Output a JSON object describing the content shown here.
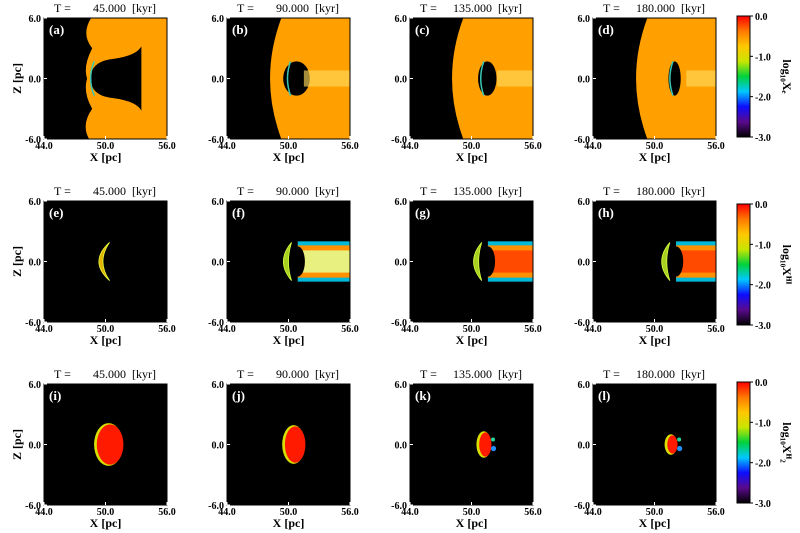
{
  "figure": {
    "background": "#000000",
    "colormap": [
      "#000000",
      "#5a0a8c",
      "#0d0dff",
      "#00c8ff",
      "#00d23c",
      "#c8e600",
      "#ffc800",
      "#ff7800",
      "#ff0000"
    ]
  },
  "chart_data": {
    "type": "heatmap",
    "layout": {
      "rows": 3,
      "cols": 4
    },
    "xlabel": "X [pc]",
    "ylabel": "Z [pc]",
    "xlim": [
      44.0,
      56.0
    ],
    "ylim": [
      -6.0,
      6.0
    ],
    "xticks": [
      "44.0",
      "50.0",
      "56.0"
    ],
    "yticks": [
      "6.0",
      "0.0",
      "-6.0"
    ],
    "time_prefix": "T =",
    "time_unit": "[kyr]",
    "times": [
      "45.000",
      "90.000",
      "135.000",
      "180.000"
    ],
    "colorbar": {
      "ticks": [
        "0.0",
        "-1.0",
        "-2.0",
        "-3.0"
      ],
      "range": [
        -3.0,
        0.0
      ]
    },
    "rows": [
      {
        "quantity": "log10 Xe",
        "colorbar_label": "log₁₀Xₑ",
        "panels": [
          "(a)",
          "(b)",
          "(c)",
          "(d)"
        ]
      },
      {
        "quantity": "log10 XHI",
        "colorbar_label": "log₁₀Xᴴᴵ",
        "panels": [
          "(e)",
          "(f)",
          "(g)",
          "(h)"
        ]
      },
      {
        "quantity": "log10 XH2",
        "colorbar_label": "log₁₀Xᴴ₂",
        "panels": [
          "(i)",
          "(j)",
          "(k)",
          "(l)"
        ]
      }
    ]
  }
}
